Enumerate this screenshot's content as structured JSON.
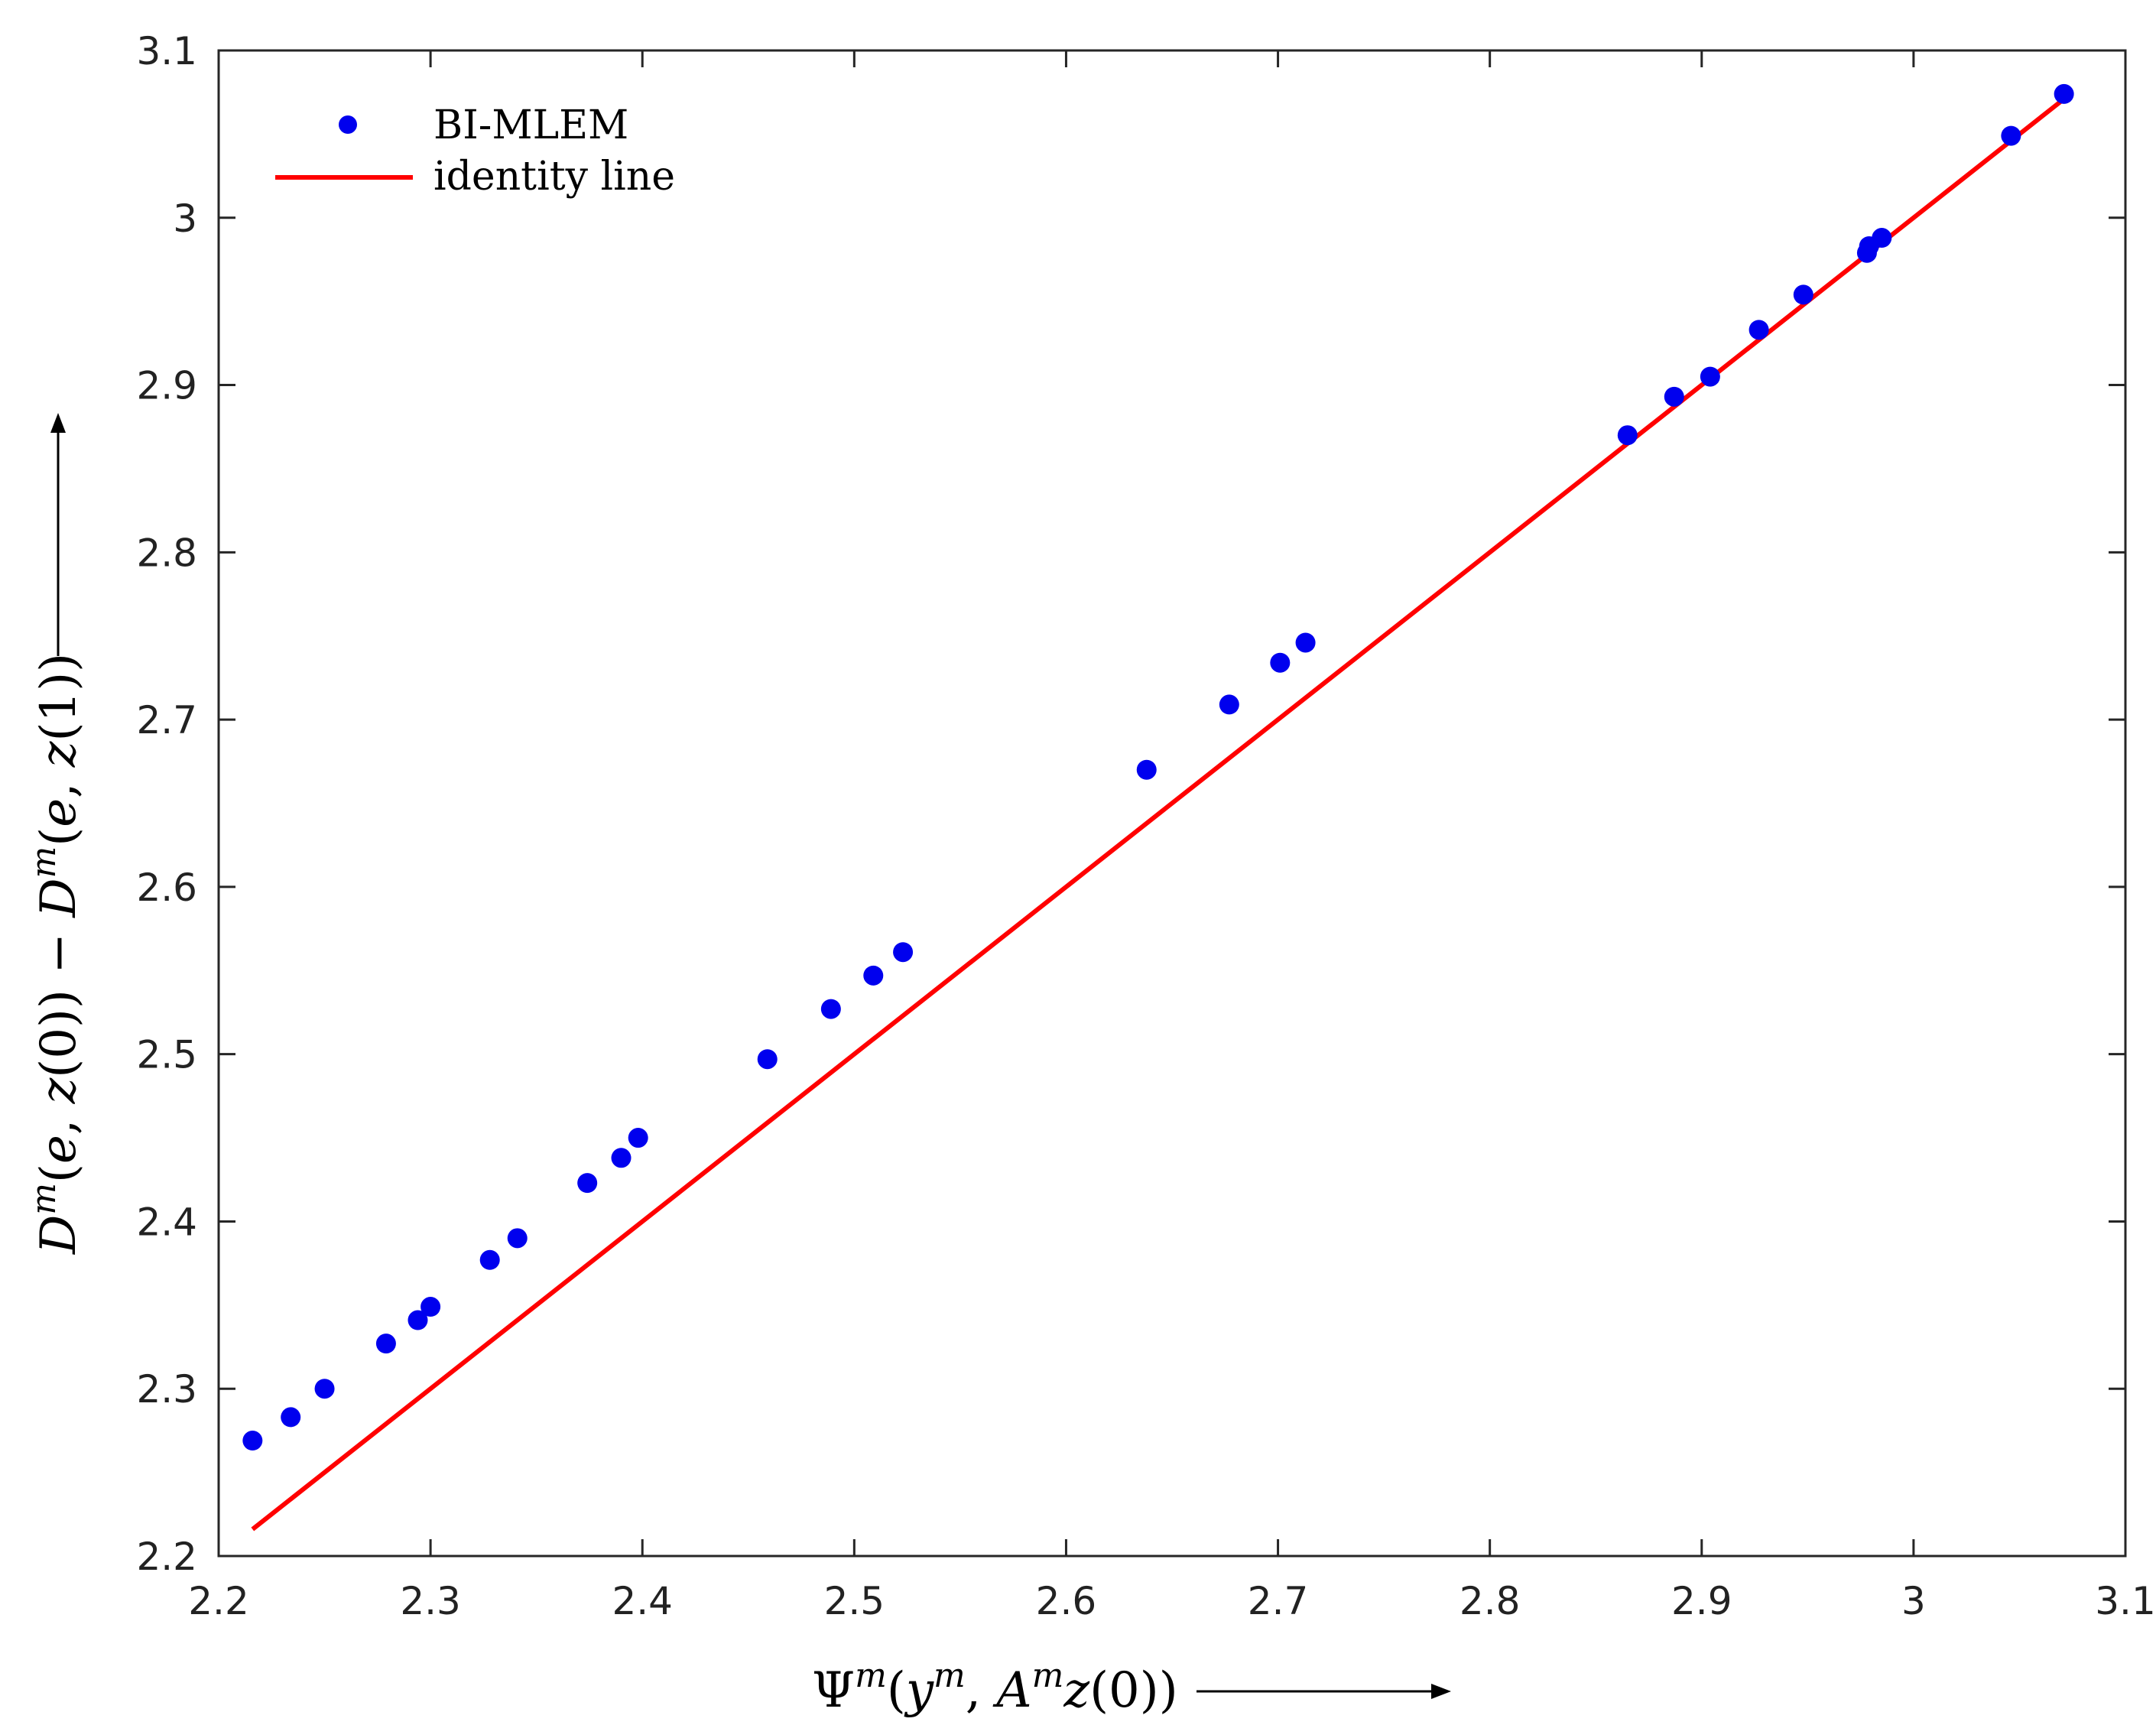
{
  "chart_data": {
    "type": "scatter",
    "title": "",
    "xlabel": "Ψ^m(y^m, A^m z(0))",
    "ylabel": "D^m(e, z(0)) − D^m(e, z(1))",
    "xlim": [
      2.2,
      3.1
    ],
    "ylim": [
      2.2,
      3.1
    ],
    "x_ticks": [
      "2.2",
      "2.3",
      "2.4",
      "2.5",
      "2.6",
      "2.7",
      "2.8",
      "2.9",
      "3",
      "3.1"
    ],
    "y_ticks": [
      "2.2",
      "2.3",
      "2.4",
      "2.5",
      "2.6",
      "2.7",
      "2.8",
      "2.9",
      "3",
      "3.1"
    ],
    "grid": false,
    "legend_position": "top-left",
    "series": [
      {
        "name": "BI-MLEM",
        "kind": "scatter",
        "color": "#0000ee",
        "points": [
          {
            "x": 2.216,
            "y": 2.269
          },
          {
            "x": 2.234,
            "y": 2.283
          },
          {
            "x": 2.25,
            "y": 2.3
          },
          {
            "x": 2.279,
            "y": 2.327
          },
          {
            "x": 2.294,
            "y": 2.341
          },
          {
            "x": 2.3,
            "y": 2.349
          },
          {
            "x": 2.328,
            "y": 2.377
          },
          {
            "x": 2.341,
            "y": 2.39
          },
          {
            "x": 2.374,
            "y": 2.423
          },
          {
            "x": 2.39,
            "y": 2.438
          },
          {
            "x": 2.398,
            "y": 2.45
          },
          {
            "x": 2.459,
            "y": 2.497
          },
          {
            "x": 2.489,
            "y": 2.527
          },
          {
            "x": 2.509,
            "y": 2.547
          },
          {
            "x": 2.523,
            "y": 2.561
          },
          {
            "x": 2.638,
            "y": 2.67
          },
          {
            "x": 2.677,
            "y": 2.709
          },
          {
            "x": 2.701,
            "y": 2.734
          },
          {
            "x": 2.713,
            "y": 2.746
          },
          {
            "x": 2.865,
            "y": 2.87
          },
          {
            "x": 2.887,
            "y": 2.893
          },
          {
            "x": 2.904,
            "y": 2.905
          },
          {
            "x": 2.927,
            "y": 2.933
          },
          {
            "x": 2.948,
            "y": 2.954
          },
          {
            "x": 2.978,
            "y": 2.979
          },
          {
            "x": 2.979,
            "y": 2.983
          },
          {
            "x": 2.985,
            "y": 2.988
          },
          {
            "x": 3.046,
            "y": 3.049
          },
          {
            "x": 3.071,
            "y": 3.074
          }
        ]
      },
      {
        "name": "identity line",
        "kind": "line",
        "color": "#ff0000",
        "points": [
          {
            "x": 2.216,
            "y": 2.216
          },
          {
            "x": 3.071,
            "y": 3.071
          }
        ]
      }
    ]
  }
}
